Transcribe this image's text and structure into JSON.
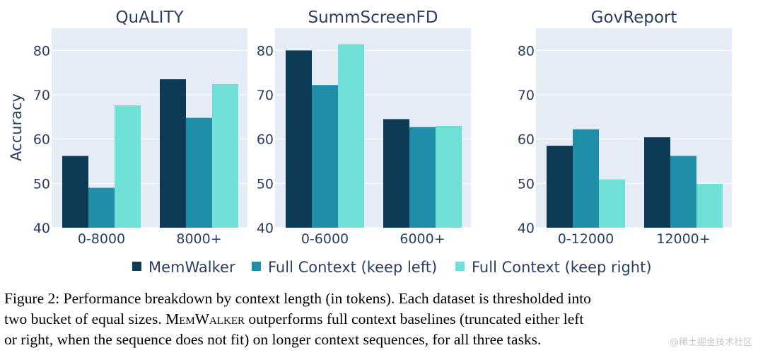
{
  "chart_data": {
    "type": "bar",
    "ylabel": "Accuracy",
    "ylim": [
      40,
      85
    ],
    "yticks": [
      40,
      50,
      60,
      70,
      80
    ],
    "series_names": [
      "MemWalker",
      "Full Context (keep left)",
      "Full Context (keep right)"
    ],
    "colors": [
      "#0d3b55",
      "#1f8ea8",
      "#6fe0d5"
    ],
    "grid": true,
    "legend": "bottom-center",
    "panels": [
      {
        "title": "QuALITY",
        "categories": [
          "0-8000",
          "8000+"
        ],
        "series": [
          {
            "name": "MemWalker",
            "values": [
              56.2,
              73.5
            ]
          },
          {
            "name": "Full Context (keep left)",
            "values": [
              49.0,
              64.8
            ]
          },
          {
            "name": "Full Context (keep right)",
            "values": [
              67.6,
              72.4
            ]
          }
        ]
      },
      {
        "title": "SummScreenFD",
        "categories": [
          "0-6000",
          "6000+"
        ],
        "series": [
          {
            "name": "MemWalker",
            "values": [
              80.0,
              64.5
            ]
          },
          {
            "name": "Full Context (keep left)",
            "values": [
              72.2,
              62.7
            ]
          },
          {
            "name": "Full Context (keep right)",
            "values": [
              81.4,
              63.0
            ]
          }
        ]
      },
      {
        "title": "GovReport",
        "categories": [
          "0-12000",
          "12000+"
        ],
        "series": [
          {
            "name": "MemWalker",
            "values": [
              58.5,
              60.4
            ]
          },
          {
            "name": "Full Context (keep left)",
            "values": [
              62.2,
              56.2
            ]
          },
          {
            "name": "Full Context (keep right)",
            "values": [
              50.9,
              49.9
            ]
          }
        ]
      }
    ]
  },
  "caption": {
    "line1": "Figure 2:  Performance breakdown by context length (in tokens).  Each dataset is thresholded into",
    "line2_prefix": "two bucket of equal sizes.",
    "line2_name": "MemWalker",
    "line2_suffix": "outperforms full context baselines (truncated either left",
    "line3": "or right, when the sequence does not fit) on longer context sequences, for all three tasks."
  },
  "watermark": "@稀土掘金技术社区"
}
